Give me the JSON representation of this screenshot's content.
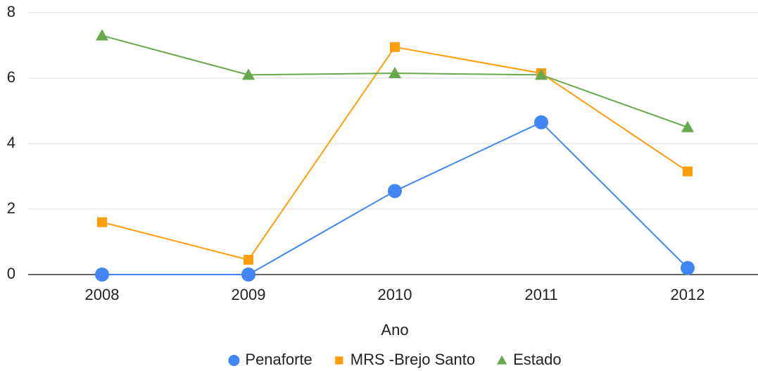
{
  "chart_data": {
    "type": "line",
    "x_label": "Ano",
    "categories": [
      "2008",
      "2009",
      "2010",
      "2011",
      "2012"
    ],
    "series": [
      {
        "name": "Penaforte",
        "color": "#4285f4",
        "marker": "circle",
        "values": [
          0,
          0,
          2.55,
          4.65,
          0.2
        ]
      },
      {
        "name": "MRS -Brejo Santo",
        "color": "#ff9d0a",
        "marker": "square",
        "values": [
          1.6,
          0.45,
          6.95,
          6.15,
          3.15
        ]
      },
      {
        "name": "Estado",
        "color": "#6aa84f",
        "marker": "triangle",
        "values": [
          7.3,
          6.1,
          6.15,
          6.1,
          4.5
        ]
      }
    ],
    "ylim": [
      0,
      8
    ],
    "yticks": [
      0,
      2,
      4,
      6,
      8
    ],
    "grid": true,
    "legend": "bottom"
  }
}
